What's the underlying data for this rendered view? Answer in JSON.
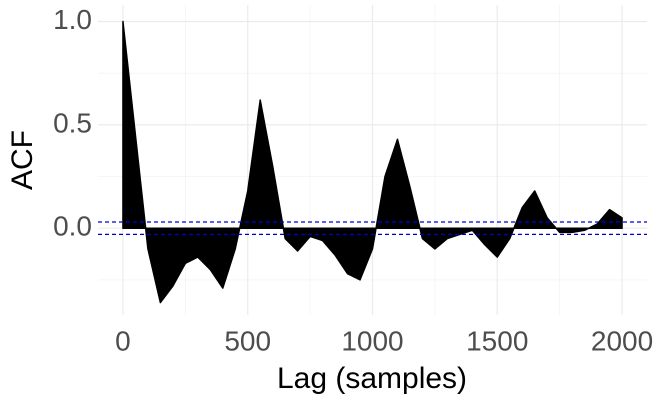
{
  "chart_data": {
    "type": "area",
    "x_label": "Lag (samples)",
    "y_label": "ACF",
    "x": [
      0,
      50,
      100,
      150,
      200,
      250,
      300,
      350,
      400,
      450,
      500,
      550,
      600,
      650,
      700,
      750,
      800,
      850,
      900,
      950,
      1000,
      1050,
      1100,
      1150,
      1200,
      1250,
      1300,
      1350,
      1400,
      1450,
      1500,
      1550,
      1600,
      1650,
      1700,
      1750,
      1800,
      1850,
      1900,
      1950,
      2000
    ],
    "values": [
      1.0,
      0.45,
      -0.1,
      -0.36,
      -0.28,
      -0.17,
      -0.14,
      -0.2,
      -0.29,
      -0.1,
      0.18,
      0.62,
      0.3,
      -0.05,
      -0.11,
      -0.04,
      -0.06,
      -0.13,
      -0.22,
      -0.25,
      -0.1,
      0.25,
      0.43,
      0.2,
      -0.05,
      -0.1,
      -0.05,
      -0.03,
      -0.01,
      -0.08,
      -0.14,
      -0.05,
      0.1,
      0.18,
      0.05,
      -0.02,
      -0.02,
      -0.01,
      0.02,
      0.09,
      0.05
    ],
    "color": "#000000",
    "conf_band": [
      -0.03,
      0.03
    ],
    "conf_color": "#0000cd",
    "xlim": [
      -100,
      2100
    ],
    "ylim": [
      -0.42,
      1.08
    ],
    "xticks": [
      0,
      500,
      1000,
      1500,
      2000
    ],
    "xticks_minor": [
      250,
      750,
      1250,
      1750
    ],
    "yticks": [
      {
        "value": 0,
        "label": "0.0"
      },
      {
        "value": 0.5,
        "label": "0.5"
      },
      {
        "value": 1,
        "label": "1.0"
      }
    ],
    "yticks_minor": [
      -0.25,
      0.25,
      0.75
    ],
    "grid": true
  }
}
